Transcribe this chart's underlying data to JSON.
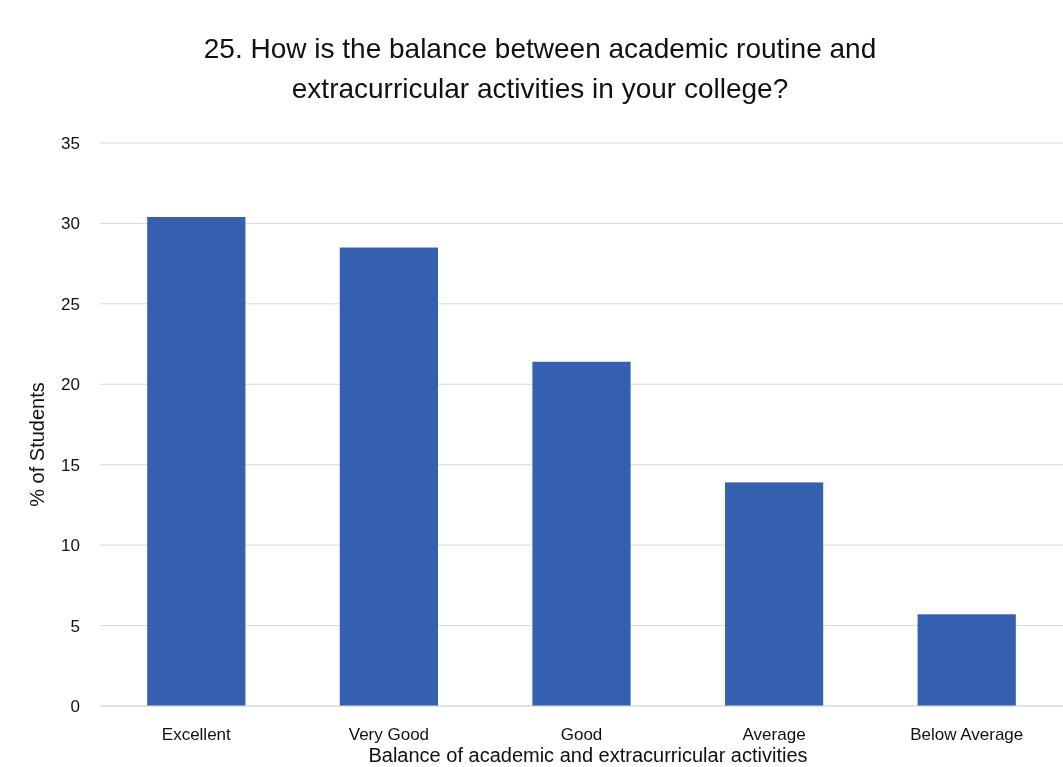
{
  "chart_data": {
    "type": "bar",
    "title": "25. How is the balance between academic routine and extracurricular activities in your college?",
    "xlabel": "Balance of academic and extracurricular activities",
    "ylabel": "% of Students",
    "categories": [
      "Excellent",
      "Very Good",
      "Good",
      "Average",
      "Below Average"
    ],
    "values": [
      30.4,
      28.5,
      21.4,
      13.9,
      5.7
    ],
    "color": "#3560b0",
    "ylim": [
      0,
      35
    ],
    "yticks": [
      0,
      5,
      10,
      15,
      20,
      25,
      30,
      35
    ],
    "grid": "y"
  }
}
